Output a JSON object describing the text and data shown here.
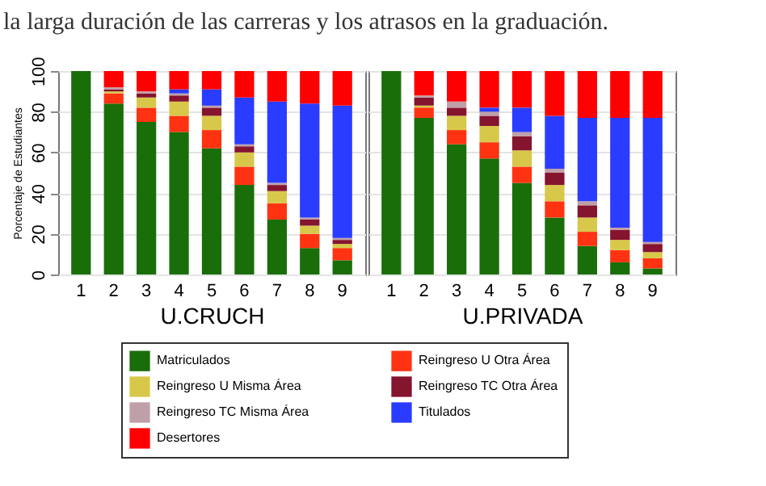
{
  "chart_data": [
    {
      "type": "bar",
      "stacked": true,
      "xlabel": "U.CRUCH",
      "ylabel": "Porcentaje de Estudiantes",
      "annotations": [
        "la larga duración de las carreras y los atrasos en la graduación."
      ],
      "categories": [
        "1",
        "2",
        "3",
        "4",
        "5",
        "6",
        "7",
        "8",
        "9"
      ],
      "ylim": [
        0,
        100
      ],
      "yticks": [
        0,
        20,
        40,
        60,
        80,
        100
      ],
      "grid": "y",
      "legend": "bottom",
      "series": [
        {
          "name": "Matriculados",
          "color": "#1a6e0a",
          "values": [
            100,
            84,
            75,
            70,
            62,
            44,
            27,
            13,
            7
          ]
        },
        {
          "name": "Reingreso U Otra Área",
          "color": "#ff3311",
          "values": [
            0,
            5,
            7,
            8,
            9,
            9,
            8,
            7,
            6
          ]
        },
        {
          "name": "Reingreso U Misma Área",
          "color": "#d8c84a",
          "values": [
            0,
            1,
            5,
            7,
            7,
            7,
            6,
            4,
            2
          ]
        },
        {
          "name": "Reingreso TC Otra Área",
          "color": "#85142e",
          "values": [
            0,
            1,
            2,
            3,
            4,
            3,
            3,
            3,
            2
          ]
        },
        {
          "name": "Reingreso TC Misma Área",
          "color": "#c0a0a8",
          "values": [
            0,
            1,
            1,
            1,
            1,
            1,
            1,
            1,
            1
          ]
        },
        {
          "name": "Titulados",
          "color": "#2a3cff",
          "values": [
            0,
            0,
            0,
            2,
            8,
            23,
            40,
            56,
            65
          ]
        },
        {
          "name": "Desertores",
          "color": "#ff0000",
          "values": [
            0,
            8,
            10,
            9,
            9,
            13,
            15,
            16,
            17
          ]
        }
      ]
    },
    {
      "type": "bar",
      "stacked": true,
      "xlabel": "U.PRIVADA",
      "categories": [
        "1",
        "2",
        "3",
        "4",
        "5",
        "6",
        "7",
        "8",
        "9"
      ],
      "ylim": [
        0,
        100
      ],
      "yticks": [
        0,
        20,
        40,
        60,
        80,
        100
      ],
      "grid": "y",
      "tick_labels": "x",
      "legend": "bottom",
      "series": [
        {
          "name": "Matriculados",
          "color": "#1a6e0a",
          "values": [
            100,
            77,
            64,
            57,
            45,
            28,
            14,
            6,
            3
          ]
        },
        {
          "name": "Reingreso U Otra Área",
          "color": "#ff3311",
          "values": [
            0,
            5,
            7,
            8,
            8,
            8,
            7,
            6,
            5
          ]
        },
        {
          "name": "Reingreso U Misma Área",
          "color": "#d8c84a",
          "values": [
            0,
            1,
            7,
            8,
            8,
            8,
            7,
            5,
            3
          ]
        },
        {
          "name": "Reingreso TC Otra Área",
          "color": "#85142e",
          "values": [
            0,
            4,
            4,
            5,
            7,
            6,
            6,
            5,
            4
          ]
        },
        {
          "name": "Reingreso TC Misma Área",
          "color": "#c0a0a8",
          "values": [
            0,
            1,
            3,
            2,
            2,
            2,
            2,
            1,
            1
          ]
        },
        {
          "name": "Titulados",
          "color": "#2a3cff",
          "values": [
            0,
            0,
            0,
            2,
            12,
            26,
            41,
            54,
            61
          ]
        },
        {
          "name": "Desertores",
          "color": "#ff0000",
          "values": [
            0,
            12,
            15,
            18,
            18,
            22,
            23,
            23,
            23
          ]
        }
      ]
    }
  ]
}
